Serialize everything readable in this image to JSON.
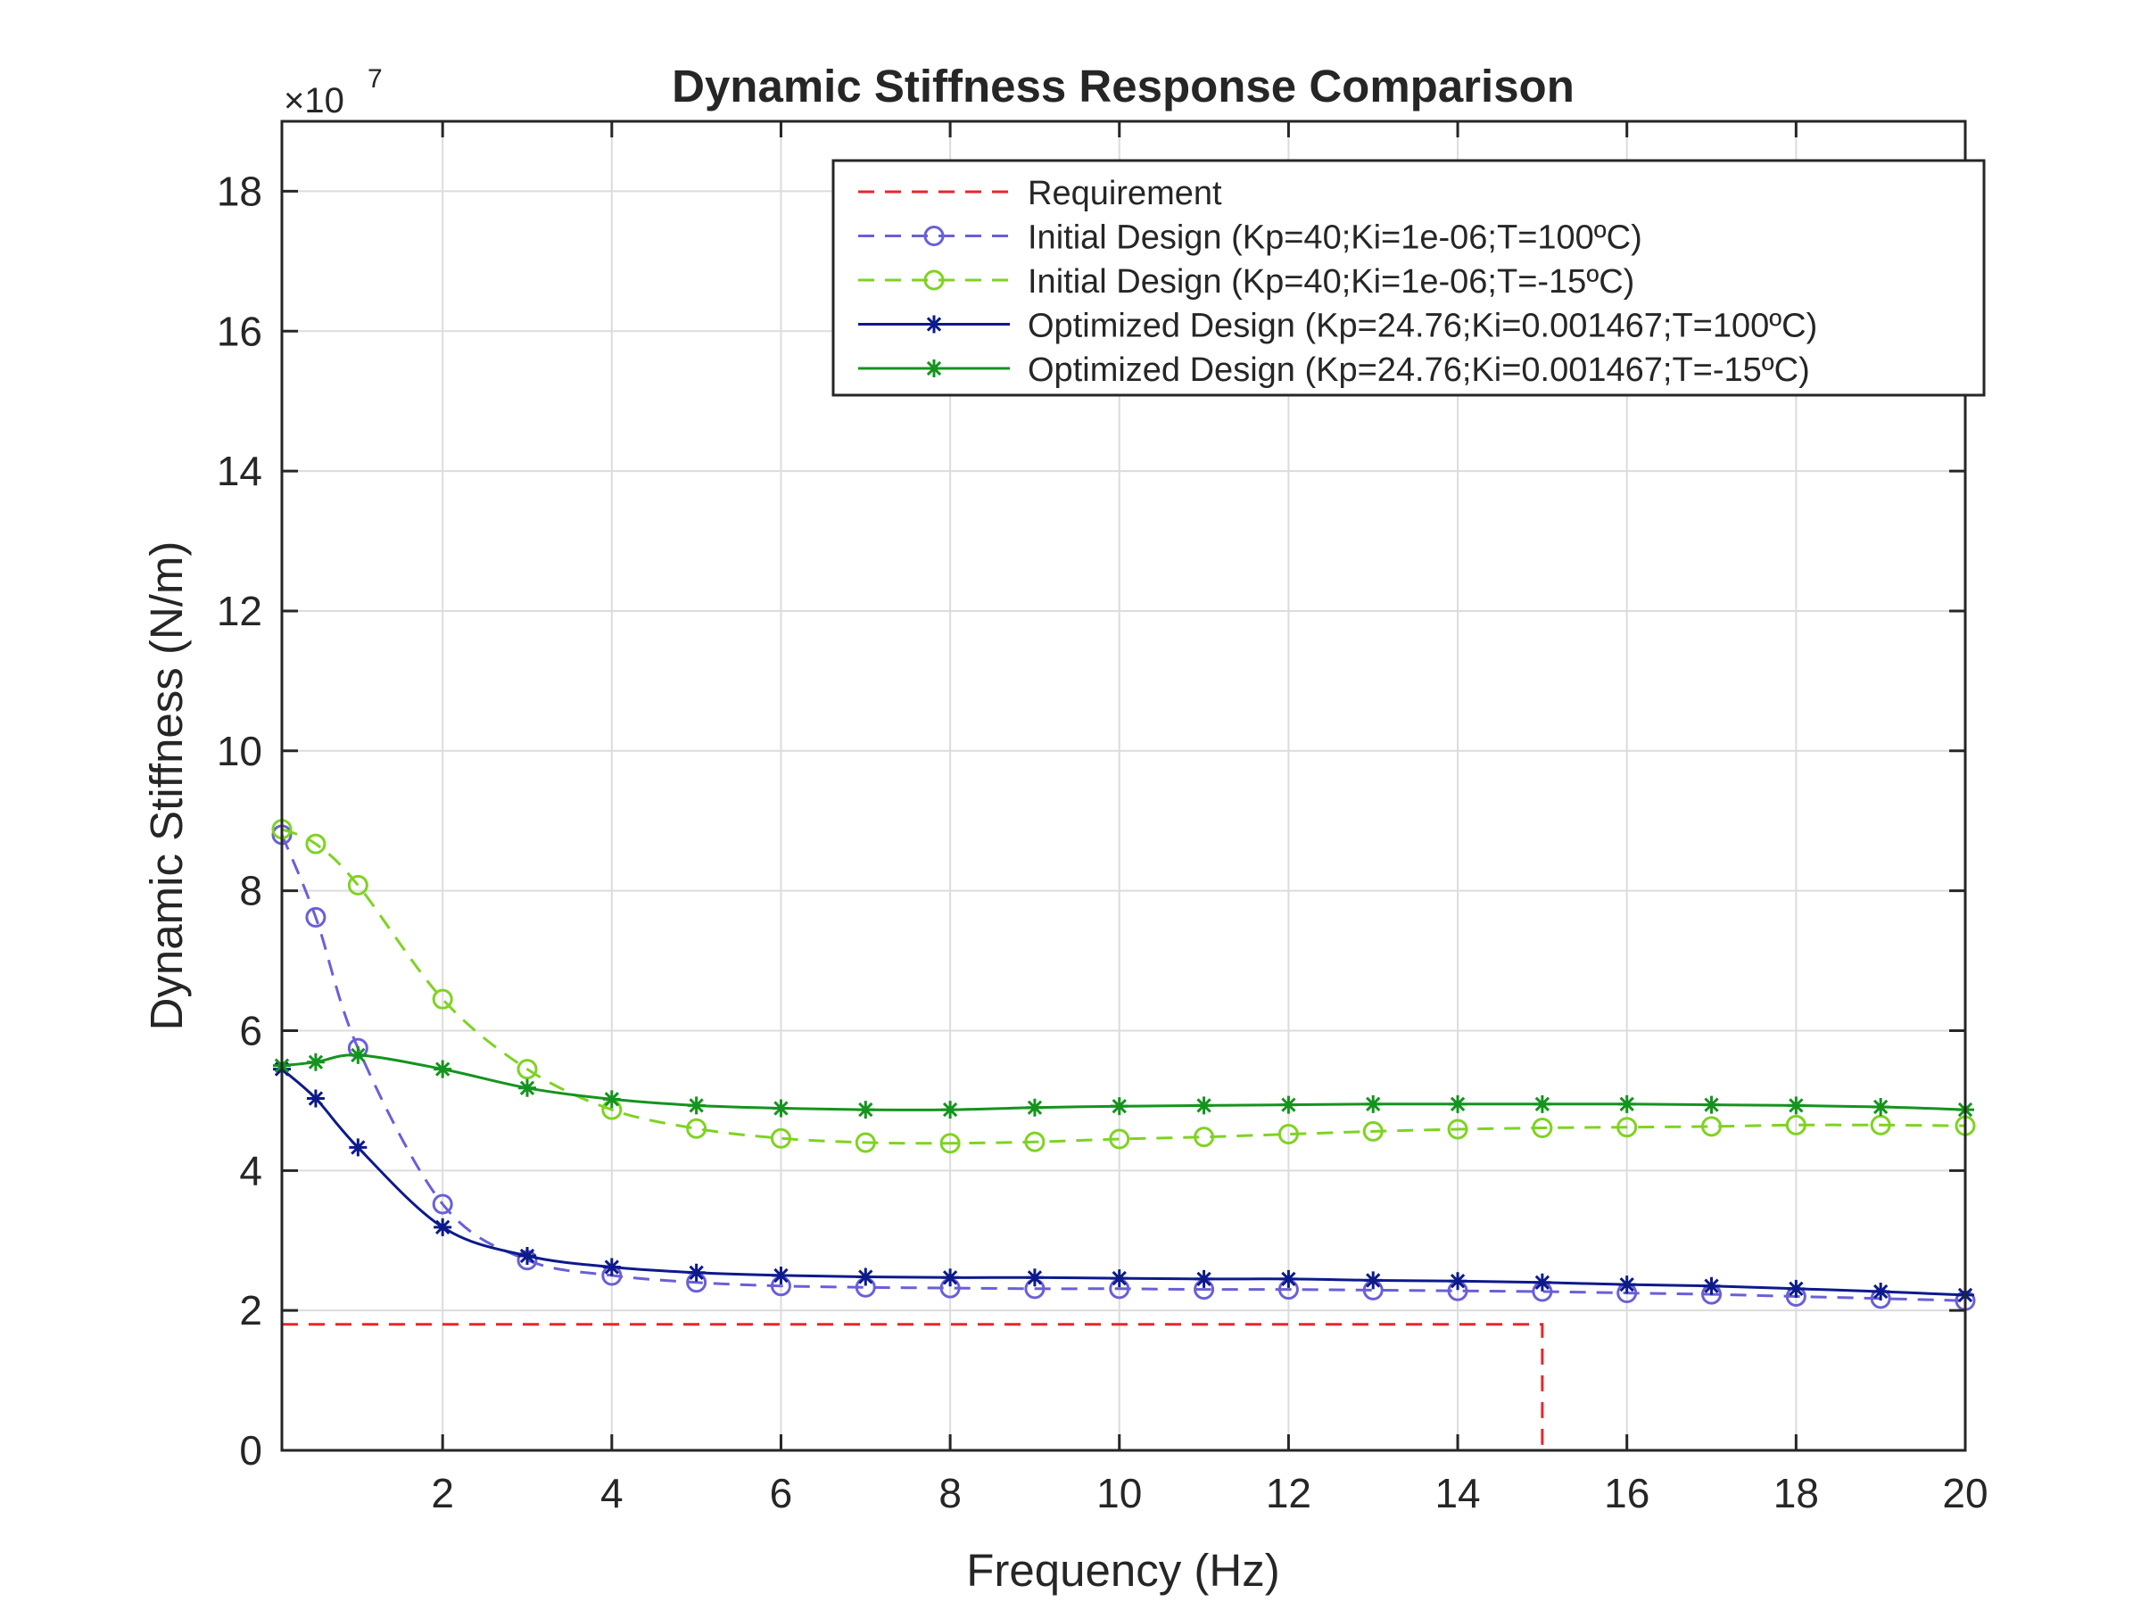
{
  "chart_data": {
    "type": "line",
    "title": "Dynamic Stiffness Response Comparison",
    "xlabel": "Frequency (Hz)",
    "ylabel": "Dynamic Stiffness (N/m)",
    "y_exponent_base": "×10",
    "y_exponent_power": "7",
    "xlim": [
      0.1,
      20
    ],
    "ylim": [
      0,
      19
    ],
    "y_scale": 10000000,
    "xticks": [
      2,
      4,
      6,
      8,
      10,
      12,
      14,
      16,
      18,
      20
    ],
    "xtick_labels": [
      "2",
      "4",
      "6",
      "8",
      "10",
      "12",
      "14",
      "16",
      "18",
      "20"
    ],
    "yticks": [
      0,
      2,
      4,
      6,
      8,
      10,
      12,
      14,
      16,
      18
    ],
    "ytick_labels": [
      "0",
      "2",
      "4",
      "6",
      "8",
      "10",
      "12",
      "14",
      "16",
      "18"
    ],
    "grid": true,
    "legend_position": "top-right",
    "series": [
      {
        "name": "Requirement",
        "color": "#e8262b",
        "line_style": "dashed",
        "marker": "none",
        "x": [
          0.1,
          15,
          15
        ],
        "y": [
          1.8,
          1.8,
          0
        ]
      },
      {
        "name": "Initial Design (Kp=40;Ki=1e-06;T=100ºC)",
        "color": "#6a5fd8",
        "line_style": "dashed",
        "marker": "circle",
        "x": [
          0.1,
          0.5,
          1,
          2,
          3,
          4,
          5,
          6,
          7,
          8,
          9,
          10,
          11,
          12,
          13,
          14,
          15,
          16,
          17,
          18,
          19,
          20
        ],
        "y": [
          8.8,
          7.62,
          5.75,
          3.52,
          2.72,
          2.5,
          2.4,
          2.35,
          2.33,
          2.32,
          2.31,
          2.31,
          2.3,
          2.3,
          2.29,
          2.28,
          2.27,
          2.25,
          2.23,
          2.2,
          2.17,
          2.14
        ]
      },
      {
        "name": "Initial Design (Kp=40;Ki=1e-06;T=-15ºC)",
        "color": "#7ed321",
        "line_style": "dashed",
        "marker": "circle",
        "x": [
          0.1,
          0.5,
          1,
          2,
          3,
          4,
          5,
          6,
          7,
          8,
          9,
          10,
          11,
          12,
          13,
          14,
          15,
          16,
          17,
          18,
          19,
          20
        ],
        "y": [
          8.88,
          8.67,
          8.08,
          6.45,
          5.45,
          4.87,
          4.6,
          4.46,
          4.4,
          4.39,
          4.41,
          4.45,
          4.48,
          4.52,
          4.56,
          4.59,
          4.61,
          4.62,
          4.63,
          4.65,
          4.65,
          4.64
        ]
      },
      {
        "name": "Optimized Design (Kp=24.76;Ki=0.001467;T=100ºC)",
        "color": "#0c1a8c",
        "line_style": "solid",
        "marker": "asterisk",
        "x": [
          0.1,
          0.5,
          1,
          2,
          3,
          4,
          5,
          6,
          7,
          8,
          9,
          10,
          11,
          12,
          13,
          14,
          15,
          16,
          17,
          18,
          19,
          20
        ],
        "y": [
          5.45,
          5.03,
          4.33,
          3.19,
          2.78,
          2.62,
          2.54,
          2.5,
          2.48,
          2.47,
          2.47,
          2.46,
          2.45,
          2.45,
          2.43,
          2.42,
          2.4,
          2.37,
          2.35,
          2.31,
          2.27,
          2.22
        ]
      },
      {
        "name": "Optimized Design (Kp=24.76;Ki=0.001467;T=-15ºC)",
        "color": "#14941e",
        "line_style": "solid",
        "marker": "asterisk",
        "x": [
          0.1,
          0.5,
          1,
          2,
          3,
          4,
          5,
          6,
          7,
          8,
          9,
          10,
          11,
          12,
          13,
          14,
          15,
          16,
          17,
          18,
          19,
          20
        ],
        "y": [
          5.5,
          5.55,
          5.65,
          5.45,
          5.18,
          5.02,
          4.93,
          4.89,
          4.87,
          4.87,
          4.9,
          4.92,
          4.93,
          4.94,
          4.95,
          4.95,
          4.95,
          4.95,
          4.94,
          4.93,
          4.91,
          4.87
        ]
      }
    ]
  }
}
